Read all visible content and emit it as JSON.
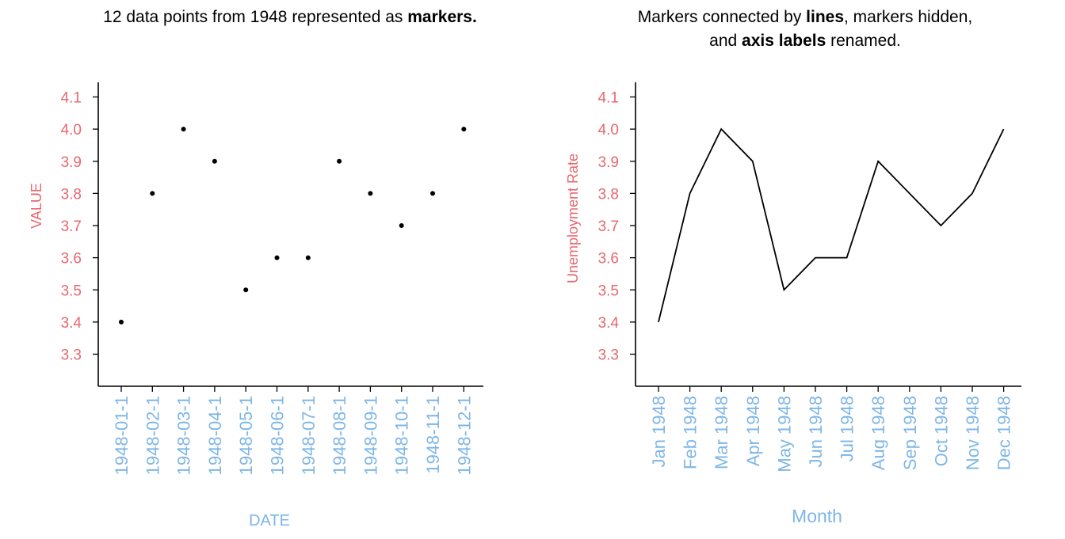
{
  "colors": {
    "axis_label": "#e8676e",
    "x_tick": "#7eb6e6",
    "mark": "#000000"
  },
  "chart_data": [
    {
      "type": "scatter",
      "title": {
        "parts": [
          {
            "text": "12 data points from 1948 represented as ",
            "bold": false
          },
          {
            "text": "markers.",
            "bold": true
          }
        ]
      },
      "xlabel": "DATE",
      "ylabel": "VALUE",
      "categories": [
        "1948-01-1",
        "1948-02-1",
        "1948-03-1",
        "1948-04-1",
        "1948-05-1",
        "1948-06-1",
        "1948-07-1",
        "1948-08-1",
        "1948-09-1",
        "1948-10-1",
        "1948-11-1",
        "1948-12-1"
      ],
      "values": [
        3.4,
        3.8,
        4.0,
        3.9,
        3.5,
        3.6,
        3.6,
        3.9,
        3.8,
        3.7,
        3.8,
        4.0
      ],
      "yticks": [
        "3.3",
        "3.4",
        "3.5",
        "3.6",
        "3.7",
        "3.8",
        "3.9",
        "4.0",
        "4.1"
      ],
      "ylim": [
        3.2,
        4.15
      ],
      "grid": false,
      "legend": "none"
    },
    {
      "type": "line",
      "title": {
        "line1": [
          {
            "text": "Markers connected by ",
            "bold": false
          },
          {
            "text": "lines",
            "bold": true
          },
          {
            "text": ", markers hidden,",
            "bold": false
          }
        ],
        "line2": [
          {
            "text": "and ",
            "bold": false
          },
          {
            "text": "axis labels",
            "bold": true
          },
          {
            "text": " renamed.",
            "bold": false
          }
        ]
      },
      "xlabel": "Month",
      "ylabel": "Unemployment Rate",
      "categories": [
        "Jan 1948",
        "Feb 1948",
        "Mar 1948",
        "Apr 1948",
        "May 1948",
        "Jun 1948",
        "Jul 1948",
        "Aug 1948",
        "Sep 1948",
        "Oct 1948",
        "Nov 1948",
        "Dec 1948"
      ],
      "values": [
        3.4,
        3.8,
        4.0,
        3.9,
        3.5,
        3.6,
        3.6,
        3.9,
        3.8,
        3.7,
        3.8,
        4.0
      ],
      "yticks": [
        "3.3",
        "3.4",
        "3.5",
        "3.6",
        "3.7",
        "3.8",
        "3.9",
        "4.0",
        "4.1"
      ],
      "ylim": [
        3.2,
        4.15
      ],
      "grid": false,
      "legend": "none"
    }
  ]
}
